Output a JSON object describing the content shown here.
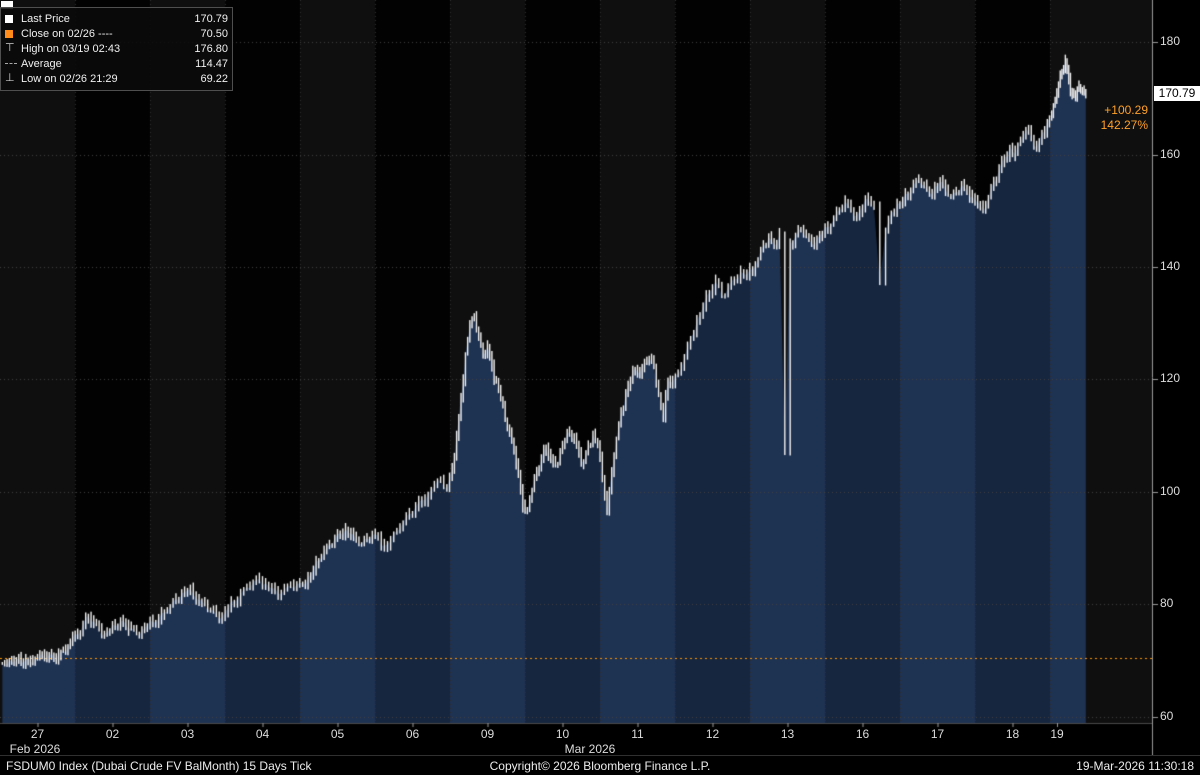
{
  "legend": {
    "items": [
      {
        "marker": "white-square",
        "label": "Last Price",
        "value": "170.79"
      },
      {
        "marker": "orange-square",
        "label": "Close on 02/26 ----",
        "value": "70.50"
      },
      {
        "marker": "high-tee",
        "glyph": "⊤",
        "label": "High on 03/19 02:43",
        "value": "176.80"
      },
      {
        "marker": "avg-dash",
        "label": "Average",
        "value": "114.47"
      },
      {
        "marker": "low-tee",
        "glyph": "⊥",
        "label": "Low on 02/26 21:29",
        "value": "69.22"
      }
    ]
  },
  "annotation": {
    "last_price_label": "170.79",
    "change_abs": "+100.29",
    "change_pct": "142.27%"
  },
  "bottom_bar": {
    "left": "FSDUM0 Index (Dubai Crude FV BalMonth) 15 Days Tick",
    "center": "Copyright© 2026 Bloomberg Finance L.P.",
    "right": "19-Mar-2026 11:30:18"
  },
  "chart_data": {
    "type": "line",
    "title": "FSDUM0 Index (Dubai Crude FV BalMonth) 15 Days Tick",
    "last": 170.79,
    "close_prev": 70.5,
    "high": 176.8,
    "low": 69.22,
    "average": 114.47,
    "ylim": [
      58.9,
      187.5
    ],
    "y_ticks": [
      180,
      160,
      140,
      120,
      100,
      80,
      60
    ],
    "partial_last_day_fraction": 0.5,
    "x_axis": {
      "months": [
        {
          "label": "Feb 2026",
          "center": 35
        },
        {
          "label": "Mar 2026",
          "center": 590
        }
      ]
    },
    "colors": {
      "band_light": "#0f0f0f",
      "band_dark": "#020202",
      "fill_light": "#1e3252",
      "fill_dark": "#16263f",
      "bar": "#f2f2f2",
      "close_line": "#ff9500",
      "grid": "#3f3f3f",
      "vgrid": "#2e2e2e",
      "axis": "#9a9a9a",
      "amber": "#ffa028"
    },
    "days": [
      {
        "label": "27",
        "prices": [
          69.5,
          69.3,
          69.8,
          70.2,
          69.9,
          70.3,
          70.0,
          70.4,
          70.8,
          70.5,
          71.0,
          70.7,
          71.2,
          71.8,
          72.5,
          74.0
        ]
      },
      {
        "label": "02",
        "prices": [
          74.5,
          76.5,
          78.0,
          77.0,
          75.5,
          74.8,
          75.5,
          76.2,
          77.0,
          76.5,
          75.8,
          74.9,
          75.5,
          76.3
        ]
      },
      {
        "label": "03",
        "prices": [
          76.8,
          77.5,
          78.6,
          79.8,
          81.0,
          82.0,
          82.5,
          81.8,
          80.8,
          79.9,
          79.1,
          78.3,
          77.8
        ]
      },
      {
        "label": "04",
        "prices": [
          79.5,
          80.5,
          81.8,
          83.0,
          84.0,
          84.5,
          83.8,
          82.8,
          81.9,
          82.6,
          83.3,
          83.6
        ]
      },
      {
        "label": "05",
        "prices": [
          83.8,
          84.8,
          86.2,
          87.8,
          89.3,
          90.6,
          91.8,
          92.8,
          93.4,
          92.5,
          91.2,
          90.8,
          91.7,
          92.4
        ]
      },
      {
        "label": "06",
        "prices": [
          92.2,
          90.4,
          91.3,
          93.0,
          94.6,
          96.1,
          97.4,
          98.7,
          99.8,
          101.0,
          102.0,
          100.6
        ]
      },
      {
        "label": "09",
        "prices": [
          104.0,
          110.0,
          117.0,
          124.5,
          129.5,
          131.0,
          127.5,
          124.5,
          126.0,
          122.5,
          119.5,
          116.5,
          113.0,
          110.5,
          107.5,
          103.5,
          97.5
        ]
      },
      {
        "label": "10",
        "prices": [
          96.8,
          100.5,
          103.5,
          106.0,
          108.0,
          106.2,
          104.6,
          107.2,
          109.3,
          110.6,
          109.4,
          107.1,
          105.2,
          108.2,
          110.2,
          108.4
        ]
      },
      {
        "label": "11",
        "prices": [
          102.5,
          96.8,
          103.8,
          109.5,
          114.0,
          117.5,
          120.0,
          122.0,
          121.2,
          123.0,
          123.8,
          122.3,
          117.5,
          113.2,
          120.0,
          119.6
        ]
      },
      {
        "label": "12",
        "prices": [
          121.0,
          124.0,
          127.5,
          130.5,
          133.0,
          135.5,
          137.5,
          134.8,
          136.5,
          138.0,
          139.2,
          138.6
        ]
      },
      {
        "label": "13",
        "prices": [
          139.5,
          141.5,
          143.8,
          145.3,
          143.9,
          145.8,
          107.5,
          144.2,
          145.5,
          146.8,
          145.6,
          144.2,
          145.1,
          146.2
        ]
      },
      {
        "label": "16",
        "prices": [
          147.0,
          148.5,
          150.2,
          151.6,
          150.4,
          149.2,
          150.8,
          152.2,
          150.5,
          137.2,
          146.5,
          149.8,
          151.2
        ]
      },
      {
        "label": "17",
        "prices": [
          151.8,
          153.0,
          154.4,
          155.6,
          154.6,
          153.2,
          154.1,
          155.2,
          153.8,
          152.4,
          153.3,
          154.6,
          153.6,
          152.6
        ]
      },
      {
        "label": "18",
        "prices": [
          151.5,
          149.8,
          152.5,
          155.0,
          157.5,
          159.5,
          161.5,
          160.0,
          162.5,
          164.5,
          163.0,
          161.3,
          163.8,
          166.0
        ]
      },
      {
        "label": "19",
        "prices": [
          166.8,
          169.5,
          172.5,
          175.0,
          176.8,
          173.5,
          171.0,
          169.8,
          172.3,
          171.2,
          170.79
        ]
      }
    ]
  }
}
